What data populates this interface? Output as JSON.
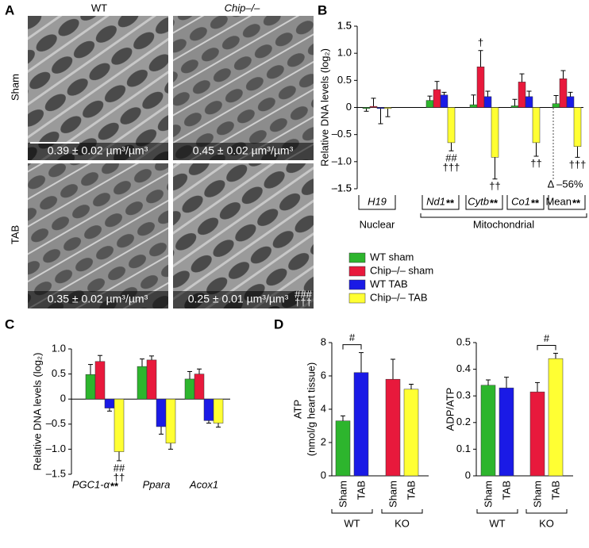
{
  "panels": [
    "A",
    "B",
    "C",
    "D"
  ],
  "images": {
    "columns": [
      "WT",
      "Chip–/–"
    ],
    "rows": [
      "Sham",
      "TAB"
    ],
    "measurements": [
      [
        "0.39 ± 0.02 µm³/µm³",
        "0.45 ± 0.02 µm³/µm³"
      ],
      [
        "0.35 ± 0.02 µm³/µm³",
        "0.25 ± 0.01 µm³/µm³"
      ]
    ],
    "marks": [
      "###",
      "†††"
    ]
  },
  "chart_data": [
    {
      "type": "bar",
      "ylabel": "Relative DNA levels (log₂)",
      "categories": [
        "H19",
        "Nd1",
        "Cytb",
        "Co1",
        "Mean"
      ],
      "category_marks": [
        null,
        "**",
        "**",
        "**",
        "**"
      ],
      "groups": [
        {
          "label": "Nuclear",
          "from": 0,
          "to": 0
        },
        {
          "label": "Mitochondrial",
          "from": 1,
          "to": 4
        }
      ],
      "series": [
        {
          "name": "WT sham",
          "color": "#2db52d",
          "values": [
            -0.02,
            0.13,
            0.05,
            0.03,
            0.07
          ],
          "errors": [
            0.05,
            0.08,
            0.18,
            0.12,
            0.15
          ]
        },
        {
          "name": "Chip–/– sham",
          "color": "#e8193c",
          "values": [
            0.02,
            0.33,
            0.75,
            0.47,
            0.53
          ],
          "errors": [
            0.15,
            0.15,
            0.3,
            0.15,
            0.15
          ]
        },
        {
          "name": "WT TAB",
          "color": "#1a1ae6",
          "values": [
            -0.02,
            0.23,
            0.2,
            0.2,
            0.2
          ],
          "errors": [
            0.28,
            0.05,
            0.1,
            0.1,
            0.08
          ]
        },
        {
          "name": "Chip–/– TAB",
          "color": "#ffff33",
          "values": [
            -0.02,
            -0.65,
            -0.92,
            -0.65,
            -0.72
          ],
          "errors": [
            0.15,
            0.15,
            0.4,
            0.25,
            0.2
          ]
        }
      ],
      "annotations": [
        {
          "category": 1,
          "series": 3,
          "lines": [
            "##",
            "†††"
          ]
        },
        {
          "category": 2,
          "series": 1,
          "lines": [
            "†"
          ]
        },
        {
          "category": 2,
          "series": 3,
          "lines": [
            "††"
          ]
        },
        {
          "category": 3,
          "series": 3,
          "lines": [
            "††"
          ]
        },
        {
          "category": 4,
          "series": 3,
          "lines": [
            "†††"
          ]
        }
      ],
      "note": "Δ –56%",
      "ylim": [
        -1.5,
        1.5
      ],
      "yticks": [
        -1.5,
        1.5,
        {
          "value": -1.5,
          "label": "–1.5"
        },
        {
          "value": -1,
          "label": "–1.0"
        },
        {
          "value": -0.5,
          "label": "–0.5"
        },
        0,
        0.5,
        {
          "value": 1,
          "label": "1.0"
        },
        1.5
      ]
    },
    {
      "type": "bar",
      "ylabel": "Relative DNA levels (log₂)",
      "categories": [
        "PGC1-α",
        "Ppara",
        "Acox1"
      ],
      "category_marks": [
        "**",
        null,
        null
      ],
      "series": [
        {
          "name": "WT sham",
          "color": "#2db52d",
          "values": [
            0.49,
            0.65,
            0.4
          ],
          "errors": [
            0.2,
            0.15,
            0.15
          ]
        },
        {
          "name": "Chip–/– sham",
          "color": "#e8193c",
          "values": [
            0.75,
            0.78,
            0.5
          ],
          "errors": [
            0.12,
            0.08,
            0.1
          ]
        },
        {
          "name": "WT TAB",
          "color": "#1a1ae6",
          "values": [
            -0.18,
            -0.55,
            -0.43
          ],
          "errors": [
            0.06,
            0.15,
            0.05
          ]
        },
        {
          "name": "Chip–/– TAB",
          "color": "#ffff33",
          "values": [
            -1.05,
            -0.88,
            -0.48
          ],
          "errors": [
            0.18,
            0.12,
            0.08
          ]
        }
      ],
      "annotations": [
        {
          "category": 0,
          "series": 3,
          "lines": [
            "##",
            "††"
          ]
        }
      ],
      "ylim": [
        -1.5,
        1
      ],
      "yticks": [
        {
          "value": -1.5,
          "label": "–1.5"
        },
        {
          "value": -1,
          "label": "–1.0"
        },
        {
          "value": -0.5,
          "label": "–0.5"
        },
        0,
        0.5,
        {
          "value": 1,
          "label": "1.0"
        }
      ]
    },
    {
      "type": "bar",
      "ylabel": [
        "ATP",
        "(nmol/g heart tissue)"
      ],
      "categories": [
        "Sham",
        "TAB",
        "Sham",
        "TAB"
      ],
      "groups": [
        {
          "label": "WT",
          "from": 0,
          "to": 1
        },
        {
          "label": "KO",
          "from": 2,
          "to": 3
        }
      ],
      "colors": [
        "#2db52d",
        "#1a1ae6",
        "#e8193c",
        "#ffff33"
      ],
      "values": [
        3.3,
        6.2,
        5.8,
        5.2
      ],
      "errors": [
        0.3,
        1.2,
        1.2,
        0.3
      ],
      "brackets": [
        {
          "text": "#",
          "from": 0,
          "to": 1
        }
      ],
      "ylim": [
        0,
        8
      ],
      "yticks": [
        0,
        2,
        4,
        6,
        8
      ]
    },
    {
      "type": "bar",
      "ylabel": "ADP/ATP",
      "categories": [
        "Sham",
        "TAB",
        "Sham",
        "TAB"
      ],
      "groups": [
        {
          "label": "WT",
          "from": 0,
          "to": 1
        },
        {
          "label": "KO",
          "from": 2,
          "to": 3
        }
      ],
      "colors": [
        "#2db52d",
        "#1a1ae6",
        "#e8193c",
        "#ffff33"
      ],
      "values": [
        0.34,
        0.33,
        0.315,
        0.44
      ],
      "errors": [
        0.02,
        0.04,
        0.035,
        0.02
      ],
      "brackets": [
        {
          "text": "#",
          "from": 2,
          "to": 3
        }
      ],
      "ylim": [
        0,
        0.5
      ],
      "yticks": [
        0,
        0.1,
        0.2,
        0.3,
        0.4,
        0.5
      ]
    }
  ]
}
